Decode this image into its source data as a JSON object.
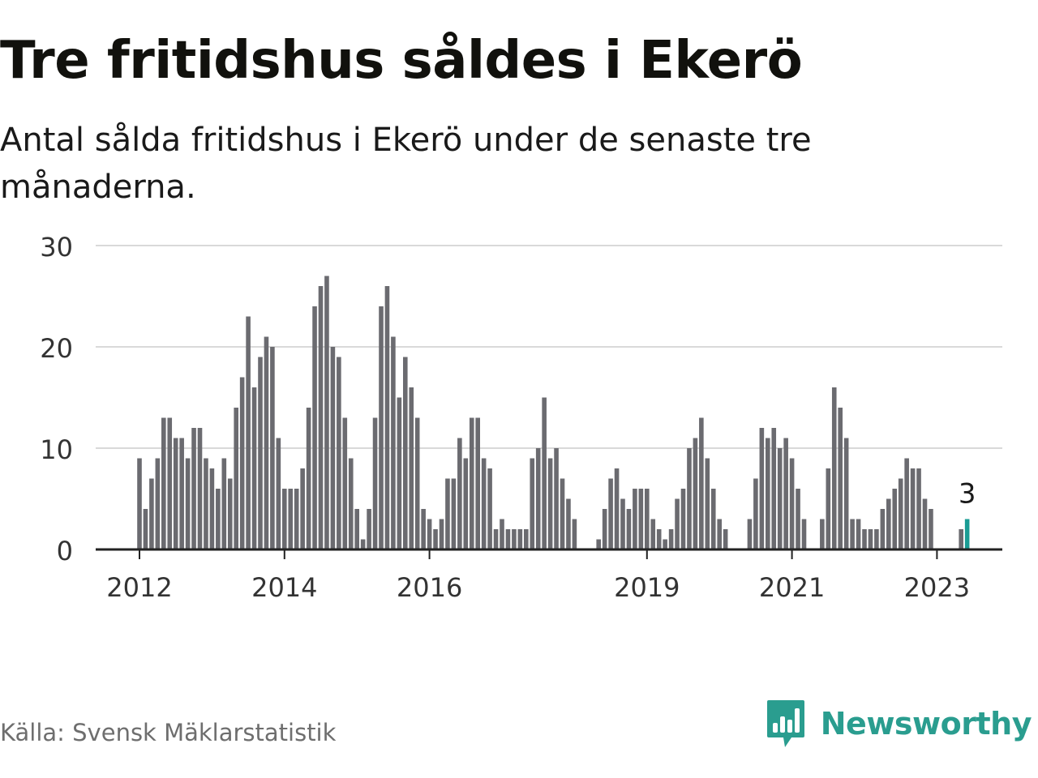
{
  "title": "Tre fritidshus såldes i Ekerö",
  "subtitle": "Antal sålda fritidshus i Ekerö under de senaste tre månaderna.",
  "source": "Källa: Svensk Mäklarstatistik",
  "brand": {
    "name": "Newsworthy",
    "icon": "newsworthy-logo-icon",
    "color": "#2a9d8f"
  },
  "colors": {
    "bar": "#6b6b70",
    "highlight": "#1a9c94",
    "grid": "#d9d9d9",
    "axis": "#222222"
  },
  "chart_data": {
    "type": "bar",
    "title": "Tre fritidshus såldes i Ekerö",
    "xlabel": "",
    "ylabel": "",
    "ylim": [
      0,
      30
    ],
    "yticks": [
      0,
      10,
      20,
      30
    ],
    "x_start_year": 2012,
    "xtick_labels": [
      {
        "label": "2012",
        "year": 2012
      },
      {
        "label": "2014",
        "year": 2014
      },
      {
        "label": "2016",
        "year": 2016
      },
      {
        "label": "2019",
        "year": 2019
      },
      {
        "label": "2021",
        "year": 2021
      },
      {
        "label": "2023",
        "year": 2023
      }
    ],
    "values": [
      9,
      4,
      7,
      9,
      13,
      13,
      11,
      11,
      9,
      12,
      12,
      9,
      8,
      6,
      9,
      7,
      14,
      17,
      23,
      16,
      19,
      21,
      20,
      11,
      6,
      6,
      6,
      8,
      14,
      24,
      26,
      27,
      20,
      19,
      13,
      9,
      4,
      1,
      4,
      13,
      24,
      26,
      21,
      15,
      19,
      16,
      13,
      4,
      3,
      2,
      3,
      7,
      7,
      11,
      9,
      13,
      13,
      9,
      8,
      2,
      3,
      2,
      2,
      2,
      2,
      9,
      10,
      15,
      9,
      10,
      7,
      5,
      3,
      0,
      0,
      0,
      1,
      4,
      7,
      8,
      5,
      4,
      6,
      6,
      6,
      3,
      2,
      1,
      2,
      5,
      6,
      10,
      11,
      13,
      9,
      6,
      3,
      2,
      0,
      0,
      0,
      3,
      7,
      12,
      11,
      12,
      10,
      11,
      9,
      6,
      3,
      0,
      0,
      3,
      8,
      16,
      14,
      11,
      3,
      3,
      2,
      2,
      2,
      4,
      5,
      6,
      7,
      9,
      8,
      8,
      5,
      4,
      0,
      0,
      0,
      0,
      2,
      3
    ],
    "highlight": {
      "index": 137,
      "label": "3"
    }
  }
}
